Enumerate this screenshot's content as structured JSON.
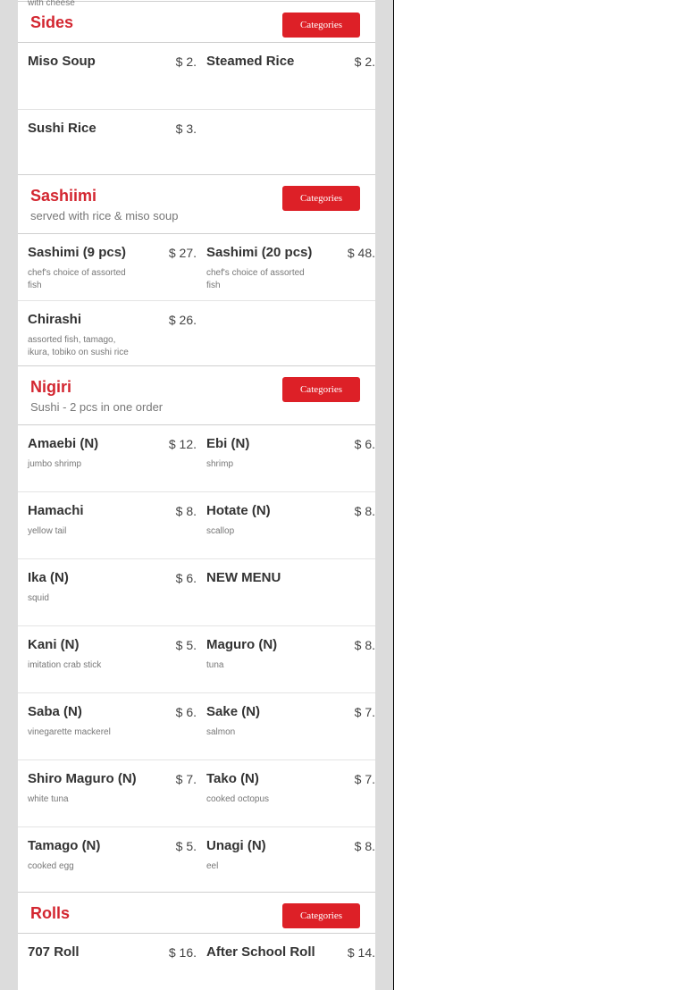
{
  "top_partial": {
    "desc": "with cheese"
  },
  "sections": [
    {
      "title": "Sides",
      "desc": "",
      "button": "Categories",
      "items": [
        {
          "name": "Miso Soup",
          "price": "$ 2.",
          "desc": ""
        },
        {
          "name": "Steamed Rice",
          "price": "$ 2.",
          "desc": ""
        },
        {
          "name": "Sushi Rice",
          "price": "$ 3.",
          "desc": ""
        }
      ]
    },
    {
      "title": "Sashiimi",
      "desc": "served with rice & miso soup",
      "button": "Categories",
      "items": [
        {
          "name": "Sashimi (9 pcs)",
          "price": "$ 27.",
          "desc": "chef's choice of assorted fish"
        },
        {
          "name": "Sashimi (20 pcs)",
          "price": "$ 48.",
          "desc": "chef's choice of assorted fish"
        },
        {
          "name": "Chirashi",
          "price": "$ 26.",
          "desc": "assorted fish, tamago, ikura, tobiko on sushi rice"
        }
      ]
    },
    {
      "title": "Nigiri",
      "desc": "Sushi - 2 pcs in one order",
      "button": "Categories",
      "items": [
        {
          "name": "Amaebi (N)",
          "price": "$ 12.",
          "desc": "jumbo shrimp"
        },
        {
          "name": "Ebi (N)",
          "price": "$ 6.",
          "desc": "shrimp"
        },
        {
          "name": "Hamachi",
          "price": "$ 8.",
          "desc": "yellow tail"
        },
        {
          "name": "Hotate (N)",
          "price": "$ 8.",
          "desc": "scallop"
        },
        {
          "name": "Ika (N)",
          "price": "$ 6.",
          "desc": "squid"
        },
        {
          "name": "NEW MENU",
          "price": "",
          "desc": ""
        },
        {
          "name": "Kani (N)",
          "price": "$ 5.",
          "desc": "imitation crab stick"
        },
        {
          "name": "Maguro (N)",
          "price": "$ 8.",
          "desc": "tuna"
        },
        {
          "name": "Saba (N)",
          "price": "$ 6.",
          "desc": "vinegarette mackerel"
        },
        {
          "name": "Sake (N)",
          "price": "$ 7.",
          "desc": "salmon"
        },
        {
          "name": "Shiro Maguro (N)",
          "price": "$ 7.",
          "desc": "white tuna"
        },
        {
          "name": "Tako (N)",
          "price": "$ 7.",
          "desc": "cooked octopus"
        },
        {
          "name": "Tamago (N)",
          "price": "$ 5.",
          "desc": "cooked egg"
        },
        {
          "name": "Unagi (N)",
          "price": "$ 8.",
          "desc": "eel"
        }
      ]
    },
    {
      "title": "Rolls",
      "desc": "",
      "button": "Categories",
      "items": [
        {
          "name": "707 Roll",
          "price": "$ 16.",
          "desc": ""
        },
        {
          "name": "After School Roll",
          "price": "$ 14.",
          "desc": ""
        }
      ]
    }
  ],
  "colors": {
    "accent": "#dd2027",
    "title": "#d32630",
    "background": "#dcdcdc"
  }
}
